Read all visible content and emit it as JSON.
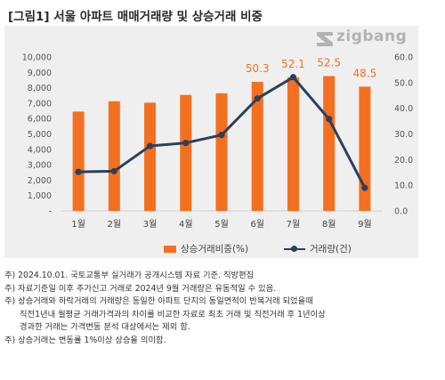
{
  "title": {
    "prefix": "[그림1]",
    "text": "서울 아파트 매매거래량 및 상승거래 비중"
  },
  "logo": {
    "text": "zigbang",
    "icon": "zigbang-logo-icon",
    "color": "#b3b3b3"
  },
  "colors": {
    "bar": "#f37020",
    "line": "#2d3f5c",
    "panel": "#efefef",
    "bar_label": "#f37020"
  },
  "chart_data": {
    "type": "bar",
    "categories": [
      "1월",
      "2월",
      "3월",
      "4월",
      "5월",
      "6월",
      "7월",
      "8월",
      "9월"
    ],
    "series": [
      {
        "name": "상승거래비중(%)",
        "type": "bar",
        "axis": "left",
        "values": [
          6450,
          7120,
          7030,
          7530,
          7640,
          8380,
          8680,
          8760,
          8070
        ],
        "data_labels": [
          "",
          "",
          "",
          "",
          "",
          "50.3",
          "52.1",
          "52.5",
          "48.5"
        ]
      },
      {
        "name": "거래량(건)",
        "type": "line",
        "axis": "right",
        "values": [
          15.2,
          15.5,
          25.3,
          26.5,
          29.6,
          43.8,
          52.1,
          35.8,
          9.0
        ]
      }
    ],
    "y_left": {
      "ylim": [
        0,
        10000
      ],
      "ticks": [
        "-",
        "1,000",
        "2,000",
        "3,000",
        "4,000",
        "5,000",
        "6,000",
        "7,000",
        "8,000",
        "9,000",
        "10,000"
      ]
    },
    "y_right": {
      "ylim": [
        0,
        60
      ],
      "ticks": [
        "0.0",
        "10.0",
        "20.0",
        "30.0",
        "40.0",
        "50.0",
        "60.0"
      ]
    },
    "grid": false,
    "legend": "bottom"
  },
  "legend": {
    "bar_label": "상승거래비중(%)",
    "line_label": "거래량(건)"
  },
  "notes": [
    "주) 2024.10.01. 국토교통부 실거래가 공개시스템 자료 기준. 직방편집",
    "주) 자료기준일 이후 추가신고 거래로 2024년 9월 거래량은 유동적일 수 있음.",
    "주) 상승거래와 하락거래의 거래량은 동일한 아파트 단지의 동일면적이 반복거래 되었을때",
    "직전1년내 월평균 거래가격과의 차이를 비교한 자료로 최초 거래 및 직전거래 후 1년이상",
    "경과한 거래는 가격변동 분석 대상에서는 제외 함.",
    "주) 상승거래는 변동률 1%이상 상승을 의미함."
  ]
}
